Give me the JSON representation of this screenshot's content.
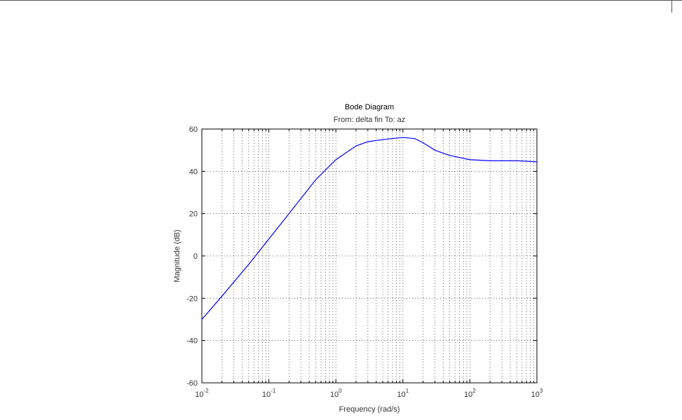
{
  "chart_data": {
    "type": "line",
    "title": "Bode Diagram",
    "subtitle": "From: delta fin  To: az",
    "x_label": "Frequency  (rad/s)",
    "y_label": "Magnitude (dB)",
    "log_x": true,
    "grid": true,
    "x": [
      0.01,
      0.02,
      0.05,
      0.1,
      0.2,
      0.5,
      1,
      2,
      3,
      5,
      10,
      15,
      20,
      30,
      50,
      100,
      200,
      500,
      1000
    ],
    "series": [
      {
        "color": "#0000ff",
        "values": [
          -30,
          -19,
          -4,
          8,
          20,
          36,
          45.5,
          52,
          54,
          55,
          56,
          55.5,
          53.5,
          50,
          47.5,
          45.5,
          45,
          45,
          44.5
        ]
      }
    ],
    "xlim": [
      0.01,
      1000
    ],
    "xticks": [
      {
        "value": 0.01,
        "label": "10",
        "superscript": "-2"
      },
      {
        "value": 0.1,
        "label": "10",
        "superscript": "-1"
      },
      {
        "value": 1,
        "label": "10",
        "superscript": "0"
      },
      {
        "value": 10,
        "label": "10",
        "superscript": "1"
      },
      {
        "value": 100,
        "label": "10",
        "superscript": "2"
      },
      {
        "value": 1000,
        "label": "10",
        "superscript": "3"
      }
    ],
    "ylim": [
      -60,
      60
    ],
    "yticks": [
      -60,
      -40,
      -20,
      0,
      20,
      40,
      60
    ]
  }
}
